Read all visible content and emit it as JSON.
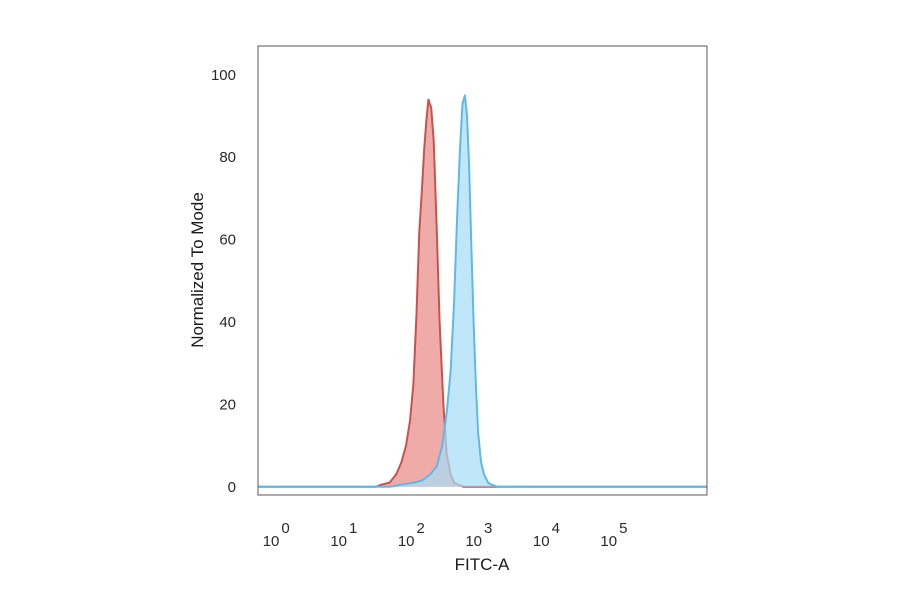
{
  "chart_data": {
    "type": "area",
    "title": "",
    "xlabel": "FITC-A",
    "ylabel": "Normalized To Mode",
    "x_scale": "log",
    "xlim": [
      0.45,
      2000000
    ],
    "ylim": [
      -2,
      107
    ],
    "grid": false,
    "legend": "none",
    "x_ticks": [
      {
        "base": "10",
        "exp": "0",
        "value": 1
      },
      {
        "base": "10",
        "exp": "1",
        "value": 10
      },
      {
        "base": "10",
        "exp": "2",
        "value": 100
      },
      {
        "base": "10",
        "exp": "3",
        "value": 1000
      },
      {
        "base": "10",
        "exp": "4",
        "value": 10000
      },
      {
        "base": "10",
        "exp": "5",
        "value": 100000
      }
    ],
    "y_ticks": [
      {
        "label": "0",
        "value": 0
      },
      {
        "label": "20",
        "value": 20
      },
      {
        "label": "40",
        "value": 40
      },
      {
        "label": "60",
        "value": 60
      },
      {
        "label": "80",
        "value": 80
      },
      {
        "label": "100",
        "value": 100
      }
    ],
    "series": [
      {
        "fill": "#e98a86",
        "stroke": "#c9524c",
        "x": [
          0.45,
          25,
          30,
          40,
          50,
          60,
          70,
          80,
          90,
          100,
          110,
          120,
          130,
          140,
          150,
          165,
          180,
          200,
          220,
          250,
          280,
          320,
          360,
          420,
          500,
          700,
          1000,
          2000000
        ],
        "y": [
          0,
          0,
          0.5,
          1,
          3,
          6,
          10,
          16,
          25,
          42,
          62,
          72,
          82,
          89,
          94,
          92,
          84,
          62,
          40,
          20,
          8,
          3,
          1,
          0.5,
          0,
          0,
          0,
          0
        ]
      },
      {
        "fill": "#a8dcf6",
        "stroke": "#5fb9e4",
        "x": [
          0.45,
          40,
          60,
          90,
          120,
          160,
          200,
          240,
          280,
          320,
          360,
          400,
          440,
          480,
          520,
          560,
          600,
          650,
          700,
          760,
          820,
          900,
          1000,
          1150,
          1300,
          1600,
          2000000
        ],
        "y": [
          0,
          0,
          0.5,
          1,
          1.5,
          3,
          5,
          10,
          18,
          28,
          45,
          66,
          82,
          93,
          95,
          90,
          78,
          58,
          40,
          24,
          13,
          6,
          3,
          1,
          0.5,
          0,
          0
        ]
      }
    ]
  }
}
